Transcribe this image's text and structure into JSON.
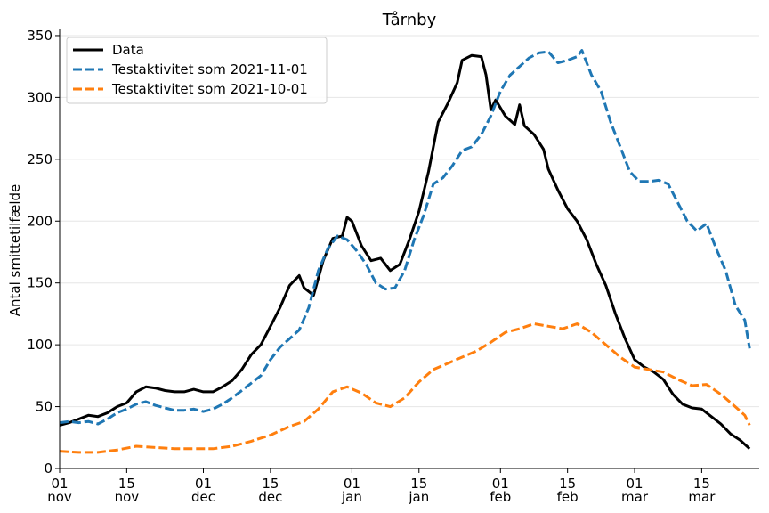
{
  "chart_data": {
    "type": "line",
    "title": "Tårnby",
    "xlabel": "",
    "ylabel": "Antal smittetilfælde",
    "ylim": [
      0,
      355
    ],
    "y_ticks": [
      0,
      50,
      100,
      150,
      200,
      250,
      300,
      350
    ],
    "x_range": [
      "2021-11-01",
      "2022-03-27"
    ],
    "x_ticks": [
      {
        "date": "2021-11-01",
        "day": "01",
        "month": "nov"
      },
      {
        "date": "2021-11-15",
        "day": "15",
        "month": "nov"
      },
      {
        "date": "2021-12-01",
        "day": "01",
        "month": "dec"
      },
      {
        "date": "2021-12-15",
        "day": "15",
        "month": "dec"
      },
      {
        "date": "2022-01-01",
        "day": "01",
        "month": "jan"
      },
      {
        "date": "2022-01-15",
        "day": "15",
        "month": "jan"
      },
      {
        "date": "2022-02-01",
        "day": "01",
        "month": "feb"
      },
      {
        "date": "2022-02-15",
        "day": "15",
        "month": "feb"
      },
      {
        "date": "2022-03-01",
        "day": "01",
        "month": "mar"
      },
      {
        "date": "2022-03-15",
        "day": "15",
        "month": "mar"
      }
    ],
    "grid": "horizontal",
    "legend": "top-left",
    "series": [
      {
        "name": "Data",
        "color": "#000000",
        "style": "solid",
        "points": [
          [
            "2021-11-01",
            35
          ],
          [
            "2021-11-03",
            37
          ],
          [
            "2021-11-05",
            40
          ],
          [
            "2021-11-07",
            43
          ],
          [
            "2021-11-09",
            42
          ],
          [
            "2021-11-11",
            45
          ],
          [
            "2021-11-13",
            50
          ],
          [
            "2021-11-15",
            53
          ],
          [
            "2021-11-17",
            62
          ],
          [
            "2021-11-19",
            66
          ],
          [
            "2021-11-21",
            65
          ],
          [
            "2021-11-23",
            63
          ],
          [
            "2021-11-25",
            62
          ],
          [
            "2021-11-27",
            62
          ],
          [
            "2021-11-29",
            64
          ],
          [
            "2021-12-01",
            62
          ],
          [
            "2021-12-03",
            62
          ],
          [
            "2021-12-05",
            66
          ],
          [
            "2021-12-07",
            71
          ],
          [
            "2021-12-09",
            80
          ],
          [
            "2021-12-11",
            92
          ],
          [
            "2021-12-13",
            100
          ],
          [
            "2021-12-15",
            115
          ],
          [
            "2021-12-17",
            130
          ],
          [
            "2021-12-19",
            148
          ],
          [
            "2021-12-21",
            156
          ],
          [
            "2021-12-22",
            146
          ],
          [
            "2021-12-24",
            140
          ],
          [
            "2021-12-26",
            168
          ],
          [
            "2021-12-28",
            186
          ],
          [
            "2021-12-30",
            188
          ],
          [
            "2021-12-31",
            203
          ],
          [
            "2022-01-01",
            200
          ],
          [
            "2022-01-03",
            180
          ],
          [
            "2022-01-05",
            168
          ],
          [
            "2022-01-07",
            170
          ],
          [
            "2022-01-09",
            160
          ],
          [
            "2022-01-11",
            165
          ],
          [
            "2022-01-13",
            185
          ],
          [
            "2022-01-15",
            208
          ],
          [
            "2022-01-17",
            240
          ],
          [
            "2022-01-19",
            280
          ],
          [
            "2022-01-21",
            295
          ],
          [
            "2022-01-23",
            312
          ],
          [
            "2022-01-24",
            330
          ],
          [
            "2022-01-26",
            334
          ],
          [
            "2022-01-28",
            333
          ],
          [
            "2022-01-29",
            318
          ],
          [
            "2022-01-30",
            290
          ],
          [
            "2022-01-31",
            298
          ],
          [
            "2022-02-02",
            285
          ],
          [
            "2022-02-04",
            278
          ],
          [
            "2022-02-05",
            294
          ],
          [
            "2022-02-06",
            277
          ],
          [
            "2022-02-08",
            270
          ],
          [
            "2022-02-10",
            258
          ],
          [
            "2022-02-11",
            242
          ],
          [
            "2022-02-13",
            225
          ],
          [
            "2022-02-15",
            210
          ],
          [
            "2022-02-17",
            200
          ],
          [
            "2022-02-19",
            185
          ],
          [
            "2022-02-21",
            165
          ],
          [
            "2022-02-23",
            148
          ],
          [
            "2022-02-25",
            125
          ],
          [
            "2022-02-27",
            105
          ],
          [
            "2022-03-01",
            88
          ],
          [
            "2022-03-03",
            82
          ],
          [
            "2022-03-05",
            78
          ],
          [
            "2022-03-07",
            72
          ],
          [
            "2022-03-09",
            60
          ],
          [
            "2022-03-11",
            52
          ],
          [
            "2022-03-13",
            49
          ],
          [
            "2022-03-15",
            48
          ],
          [
            "2022-03-17",
            42
          ],
          [
            "2022-03-19",
            36
          ],
          [
            "2022-03-21",
            28
          ],
          [
            "2022-03-23",
            23
          ],
          [
            "2022-03-25",
            16
          ]
        ]
      },
      {
        "name": "Testaktivitet som 2021-11-01",
        "color": "#1f77b4",
        "style": "dashed",
        "points": [
          [
            "2021-11-01",
            37
          ],
          [
            "2021-11-03",
            38
          ],
          [
            "2021-11-05",
            37
          ],
          [
            "2021-11-07",
            38
          ],
          [
            "2021-11-09",
            36
          ],
          [
            "2021-11-11",
            40
          ],
          [
            "2021-11-13",
            45
          ],
          [
            "2021-11-15",
            48
          ],
          [
            "2021-11-17",
            52
          ],
          [
            "2021-11-19",
            54
          ],
          [
            "2021-11-21",
            51
          ],
          [
            "2021-11-23",
            49
          ],
          [
            "2021-11-25",
            47
          ],
          [
            "2021-11-27",
            47
          ],
          [
            "2021-11-29",
            48
          ],
          [
            "2021-12-01",
            46
          ],
          [
            "2021-12-03",
            48
          ],
          [
            "2021-12-05",
            52
          ],
          [
            "2021-12-07",
            57
          ],
          [
            "2021-12-09",
            63
          ],
          [
            "2021-12-11",
            69
          ],
          [
            "2021-12-13",
            75
          ],
          [
            "2021-12-15",
            88
          ],
          [
            "2021-12-17",
            98
          ],
          [
            "2021-12-19",
            105
          ],
          [
            "2021-12-21",
            112
          ],
          [
            "2021-12-23",
            130
          ],
          [
            "2021-12-25",
            160
          ],
          [
            "2021-12-27",
            178
          ],
          [
            "2021-12-29",
            188
          ],
          [
            "2021-12-31",
            185
          ],
          [
            "2022-01-02",
            176
          ],
          [
            "2022-01-04",
            165
          ],
          [
            "2022-01-06",
            150
          ],
          [
            "2022-01-08",
            145
          ],
          [
            "2022-01-10",
            146
          ],
          [
            "2022-01-12",
            160
          ],
          [
            "2022-01-14",
            185
          ],
          [
            "2022-01-16",
            205
          ],
          [
            "2022-01-18",
            230
          ],
          [
            "2022-01-20",
            235
          ],
          [
            "2022-01-22",
            245
          ],
          [
            "2022-01-24",
            257
          ],
          [
            "2022-01-26",
            260
          ],
          [
            "2022-01-28",
            270
          ],
          [
            "2022-01-30",
            285
          ],
          [
            "2022-02-01",
            305
          ],
          [
            "2022-02-03",
            318
          ],
          [
            "2022-02-05",
            325
          ],
          [
            "2022-02-07",
            332
          ],
          [
            "2022-02-09",
            336
          ],
          [
            "2022-02-11",
            337
          ],
          [
            "2022-02-13",
            328
          ],
          [
            "2022-02-15",
            330
          ],
          [
            "2022-02-17",
            333
          ],
          [
            "2022-02-18",
            338
          ],
          [
            "2022-02-20",
            318
          ],
          [
            "2022-02-22",
            305
          ],
          [
            "2022-02-24",
            280
          ],
          [
            "2022-02-26",
            260
          ],
          [
            "2022-02-28",
            240
          ],
          [
            "2022-03-02",
            232
          ],
          [
            "2022-03-04",
            232
          ],
          [
            "2022-03-06",
            233
          ],
          [
            "2022-03-08",
            230
          ],
          [
            "2022-03-10",
            215
          ],
          [
            "2022-03-12",
            200
          ],
          [
            "2022-03-14",
            192
          ],
          [
            "2022-03-16",
            198
          ],
          [
            "2022-03-18",
            178
          ],
          [
            "2022-03-20",
            160
          ],
          [
            "2022-03-22",
            132
          ],
          [
            "2022-03-24",
            120
          ],
          [
            "2022-03-25",
            97
          ]
        ]
      },
      {
        "name": "Testaktivitet som 2021-10-01",
        "color": "#ff7f0e",
        "style": "dashed",
        "points": [
          [
            "2021-11-01",
            14
          ],
          [
            "2021-11-05",
            13
          ],
          [
            "2021-11-09",
            13
          ],
          [
            "2021-11-13",
            15
          ],
          [
            "2021-11-17",
            18
          ],
          [
            "2021-11-21",
            17
          ],
          [
            "2021-11-25",
            16
          ],
          [
            "2021-11-29",
            16
          ],
          [
            "2021-12-03",
            16
          ],
          [
            "2021-12-07",
            18
          ],
          [
            "2021-12-11",
            22
          ],
          [
            "2021-12-15",
            27
          ],
          [
            "2021-12-19",
            34
          ],
          [
            "2021-12-22",
            38
          ],
          [
            "2021-12-25",
            48
          ],
          [
            "2021-12-28",
            62
          ],
          [
            "2021-12-31",
            66
          ],
          [
            "2022-01-03",
            61
          ],
          [
            "2022-01-06",
            53
          ],
          [
            "2022-01-09",
            50
          ],
          [
            "2022-01-12",
            57
          ],
          [
            "2022-01-15",
            70
          ],
          [
            "2022-01-18",
            80
          ],
          [
            "2022-01-21",
            85
          ],
          [
            "2022-01-24",
            90
          ],
          [
            "2022-01-27",
            95
          ],
          [
            "2022-01-30",
            102
          ],
          [
            "2022-02-02",
            110
          ],
          [
            "2022-02-05",
            113
          ],
          [
            "2022-02-08",
            117
          ],
          [
            "2022-02-11",
            115
          ],
          [
            "2022-02-14",
            113
          ],
          [
            "2022-02-17",
            117
          ],
          [
            "2022-02-20",
            110
          ],
          [
            "2022-02-23",
            100
          ],
          [
            "2022-02-26",
            90
          ],
          [
            "2022-03-01",
            82
          ],
          [
            "2022-03-04",
            80
          ],
          [
            "2022-03-07",
            78
          ],
          [
            "2022-03-10",
            72
          ],
          [
            "2022-03-13",
            67
          ],
          [
            "2022-03-16",
            68
          ],
          [
            "2022-03-19",
            60
          ],
          [
            "2022-03-22",
            50
          ],
          [
            "2022-03-24",
            43
          ],
          [
            "2022-03-25",
            35
          ]
        ]
      }
    ]
  }
}
